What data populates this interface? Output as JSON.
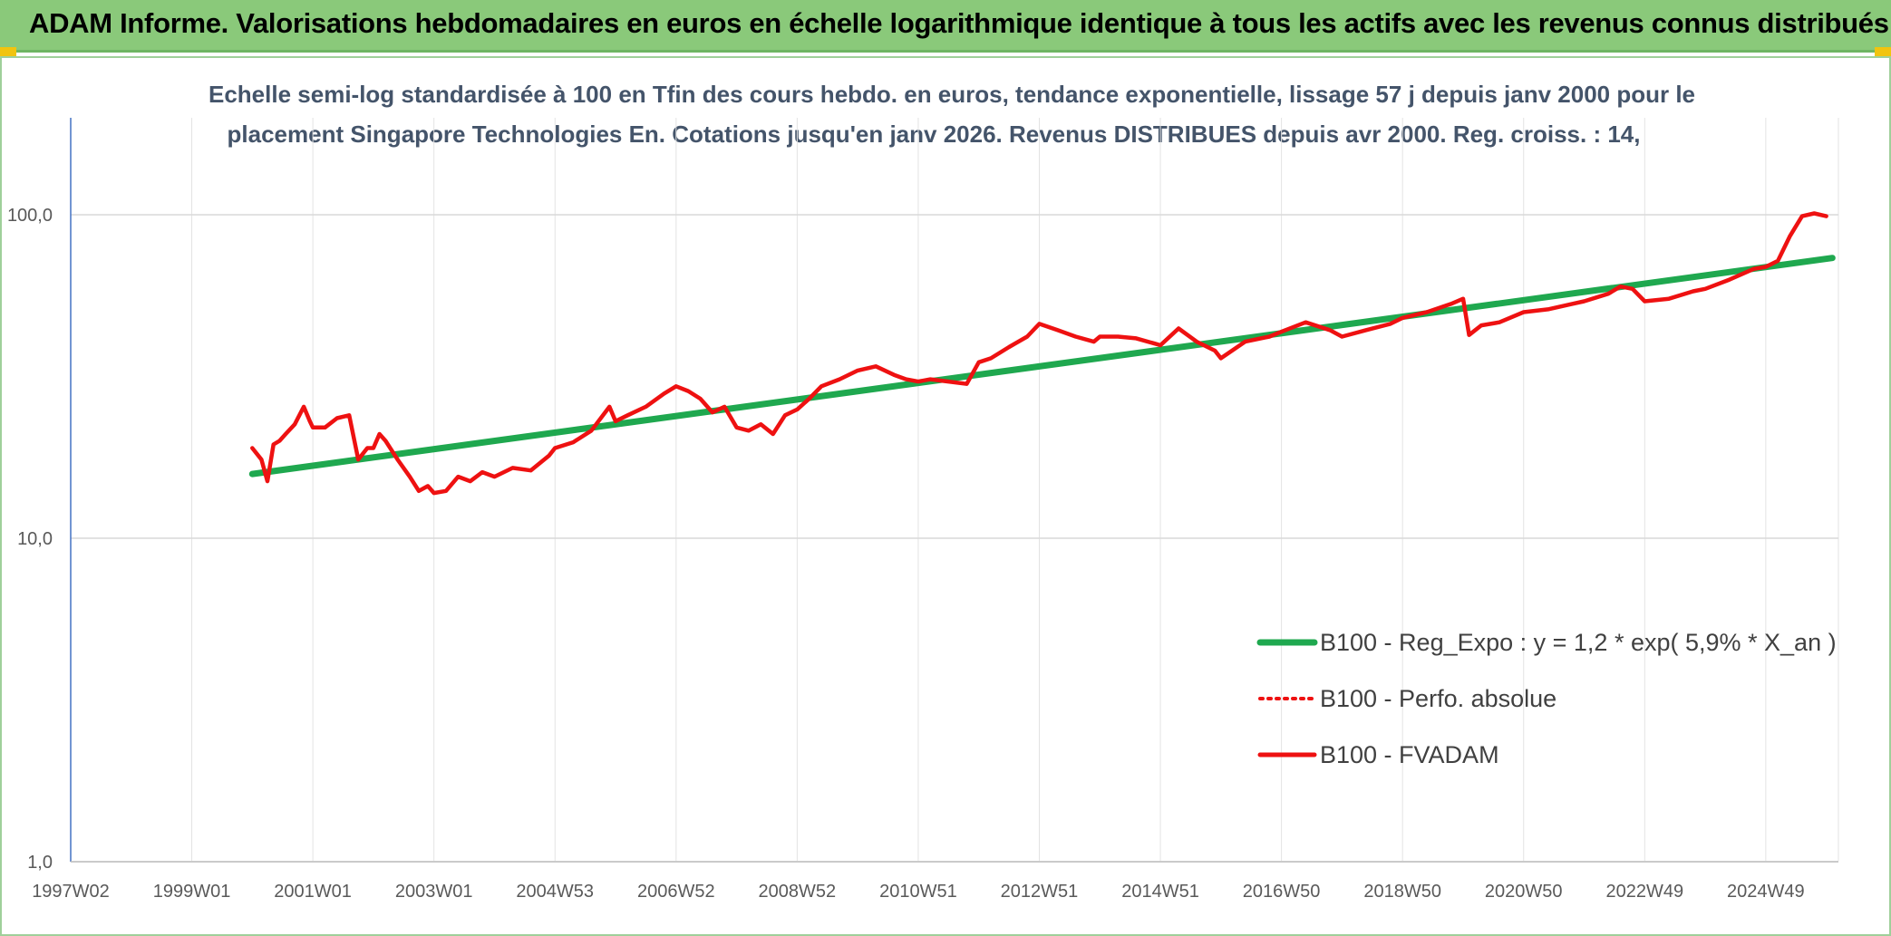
{
  "header": {
    "title": "ADAM Informe. Valorisations hebdomadaires en euros en échelle logarithmique identique à tous les actifs avec les revenus connus distribués"
  },
  "colors": {
    "header_bg": "#8ac97a",
    "trend": "#1fa84f",
    "series": "#ee1111",
    "title_text": "#44546a"
  },
  "chart_data": {
    "type": "line",
    "title_lines": [
      "Echelle semi-log standardisée à 100 en Tfin des cours hebdo. en euros, tendance exponentielle, lissage 57 j depuis janv 2000 pour le",
      "placement Singapore Technologies En. Cotations jusqu'en janv 2026. Revenus DISTRIBUES depuis avr 2000. Reg. croiss. : 14,"
    ],
    "y_scale": "log",
    "ylim": [
      1,
      180
    ],
    "y_ticks": [
      1,
      10,
      100
    ],
    "y_tick_labels": [
      "1,0",
      "10,0",
      "100,0"
    ],
    "xlim": [
      1997.0,
      2026.2
    ],
    "x_ticks": [
      1997.0,
      1999.0,
      2001.0,
      2003.0,
      2005.0,
      2007.0,
      2009.0,
      2011.0,
      2013.0,
      2015.0,
      2017.0,
      2019.0,
      2021.0,
      2023.0,
      2025.0
    ],
    "x_tick_labels": [
      "1997W02",
      "1999W01",
      "2001W01",
      "2003W01",
      "2004W53",
      "2006W52",
      "2008W52",
      "2010W51",
      "2012W51",
      "2014W51",
      "2016W50",
      "2018W50",
      "2020W50",
      "2022W49",
      "2024W49"
    ],
    "grid": true,
    "legend_position": "right",
    "series": [
      {
        "name": "B100 - Reg_Expo : y = 1,2 * exp( 5,9% *  X_an )",
        "style": "solid-thick",
        "color": "#1fa84f",
        "x": [
          2000.0,
          2026.1
        ],
        "y": [
          15.8,
          73.5
        ]
      },
      {
        "name": "B100 - Perfo. absolue",
        "style": "dotted",
        "color": "#ee1111",
        "x": [],
        "y": []
      },
      {
        "name": "B100 - FVADAM",
        "style": "solid",
        "color": "#ee1111",
        "x": [
          2000.0,
          2000.15,
          2000.25,
          2000.35,
          2000.45,
          2000.55,
          2000.7,
          2000.85,
          2000.95,
          2001.0,
          2001.2,
          2001.4,
          2001.6,
          2001.75,
          2001.9,
          2002.0,
          2002.1,
          2002.2,
          2002.4,
          2002.6,
          2002.75,
          2002.9,
          2003.0,
          2003.2,
          2003.4,
          2003.6,
          2003.8,
          2004.0,
          2004.3,
          2004.6,
          2004.9,
          2005.0,
          2005.3,
          2005.6,
          2005.9,
          2006.0,
          2006.2,
          2006.5,
          2006.8,
          2007.0,
          2007.2,
          2007.4,
          2007.6,
          2007.8,
          2008.0,
          2008.2,
          2008.4,
          2008.6,
          2008.8,
          2009.0,
          2009.2,
          2009.4,
          2009.7,
          2010.0,
          2010.3,
          2010.6,
          2010.8,
          2011.0,
          2011.2,
          2011.5,
          2011.8,
          2012.0,
          2012.2,
          2012.5,
          2012.8,
          2013.0,
          2013.3,
          2013.6,
          2013.9,
          2014.0,
          2014.3,
          2014.6,
          2014.9,
          2015.0,
          2015.3,
          2015.6,
          2015.9,
          2016.0,
          2016.4,
          2016.8,
          2017.0,
          2017.4,
          2017.8,
          2018.0,
          2018.4,
          2018.8,
          2019.0,
          2019.4,
          2019.8,
          2020.0,
          2020.1,
          2020.3,
          2020.6,
          2021.0,
          2021.4,
          2021.8,
          2022.0,
          2022.4,
          2022.6,
          2022.8,
          2023.0,
          2023.4,
          2023.8,
          2024.0,
          2024.4,
          2024.8,
          2025.0,
          2025.2,
          2025.4,
          2025.6,
          2025.8,
          2026.0
        ],
        "y": [
          19.0,
          17.5,
          15.0,
          19.5,
          20.0,
          21.0,
          22.5,
          25.5,
          23.0,
          22.0,
          22.0,
          23.5,
          24.0,
          17.5,
          19.0,
          19.0,
          21.0,
          20.0,
          17.5,
          15.5,
          14.0,
          14.5,
          13.8,
          14.0,
          15.5,
          15.0,
          16.0,
          15.5,
          16.5,
          16.2,
          18.0,
          19.0,
          19.8,
          21.5,
          25.5,
          23.0,
          24.0,
          25.5,
          28.0,
          29.5,
          28.5,
          27.0,
          24.5,
          25.5,
          22.0,
          21.5,
          22.5,
          21.0,
          24.0,
          25.0,
          27.0,
          29.5,
          31.0,
          33.0,
          34.0,
          32.0,
          31.0,
          30.5,
          31.0,
          30.5,
          30.0,
          35.0,
          36.0,
          39.0,
          42.0,
          46.0,
          44.0,
          42.0,
          40.5,
          42.0,
          42.0,
          41.5,
          40.0,
          39.5,
          44.5,
          40.5,
          38.0,
          36.0,
          40.5,
          42.0,
          43.5,
          46.5,
          44.0,
          42.0,
          44.0,
          46.0,
          48.0,
          50.0,
          53.0,
          55.0,
          42.5,
          45.5,
          46.5,
          50.0,
          51.0,
          53.0,
          54.0,
          57.0,
          60.0,
          59.0,
          54.0,
          55.0,
          58.0,
          59.0,
          63.0,
          68.0,
          69.0,
          72.0,
          86.0,
          99.0,
          101.0,
          99.0
        ]
      }
    ]
  }
}
